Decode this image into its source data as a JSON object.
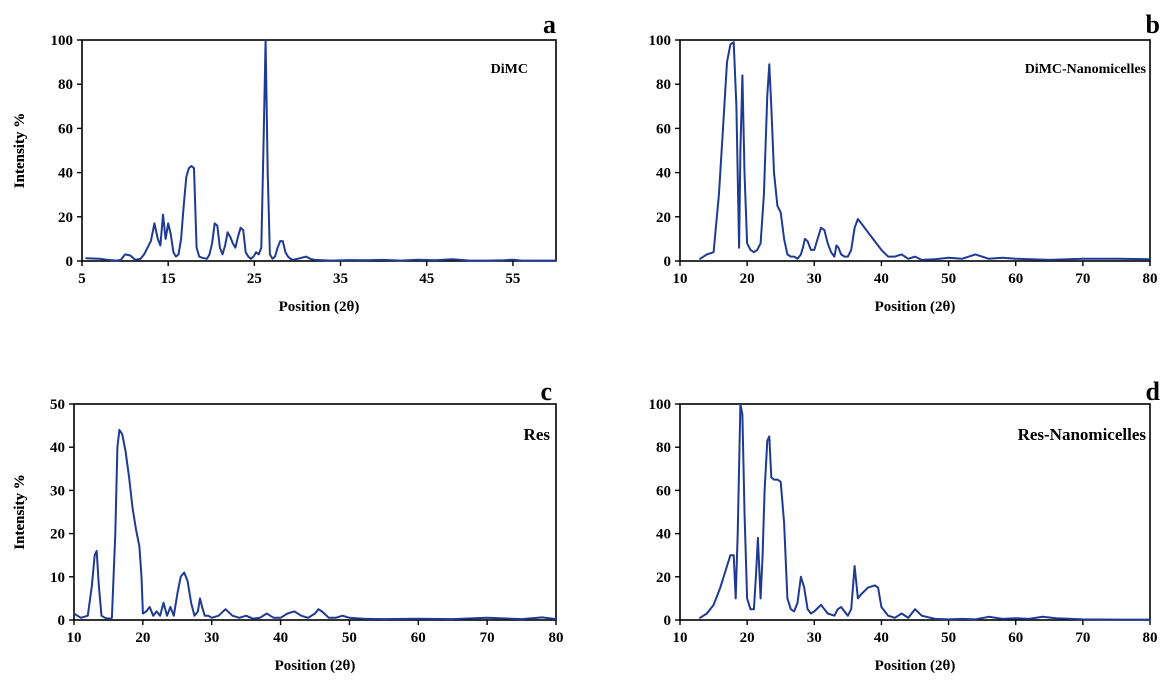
{
  "colors": {
    "line": "#1f3a93",
    "axis": "#000000",
    "background": "#ffffff"
  },
  "chart_data": [
    {
      "type": "line",
      "panel_letter": "a",
      "series": [
        {
          "name": "DiMC",
          "x": [
            5.5,
            7,
            8,
            9,
            9.5,
            10,
            10.6,
            11.2,
            11.8,
            12.2,
            12.6,
            13,
            13.4,
            13.8,
            14.1,
            14.4,
            14.7,
            15,
            15.3,
            15.6,
            15.9,
            16.2,
            16.5,
            16.8,
            17.1,
            17.4,
            17.7,
            18,
            18.3,
            18.6,
            18.9,
            19.2,
            19.5,
            19.8,
            20.1,
            20.4,
            20.7,
            21,
            21.3,
            21.6,
            21.9,
            22.2,
            22.5,
            22.8,
            23.1,
            23.4,
            23.7,
            24,
            24.3,
            24.6,
            24.9,
            25.2,
            25.5,
            25.8,
            26.05,
            26.3,
            26.55,
            26.8,
            27.1,
            27.4,
            27.7,
            28,
            28.3,
            28.6,
            28.9,
            29.2,
            29.5,
            30,
            30.5,
            31,
            31.5,
            32,
            33,
            34,
            36,
            38,
            40,
            42,
            44,
            46,
            48,
            50,
            52,
            54,
            55,
            56,
            58,
            60
          ],
          "y": [
            1.2,
            1,
            0.5,
            0.2,
            0.5,
            3,
            2.5,
            0.5,
            1,
            3,
            6,
            9,
            17,
            10,
            7,
            21,
            10,
            17,
            12,
            4,
            2,
            3,
            10,
            25,
            38,
            42,
            43,
            42,
            6,
            2,
            1.5,
            1.2,
            1,
            3,
            8,
            17,
            16,
            6,
            3,
            7,
            13,
            11,
            8,
            6,
            11,
            15,
            14,
            4,
            2,
            1,
            2,
            4,
            3,
            6,
            50,
            100,
            40,
            3,
            1,
            2,
            6,
            9,
            9,
            4,
            2,
            1,
            0.5,
            1,
            1.5,
            2,
            1,
            0.5,
            0.3,
            0.2,
            0.4,
            0.3,
            0.5,
            0.2,
            0.6,
            0.3,
            0.8,
            0.2,
            0.2,
            0.3,
            0.6,
            0.2,
            0.2,
            0.2
          ]
        }
      ],
      "xlabel": "Position  (2θ)",
      "ylabel": "Intensity %",
      "xlim": [
        5,
        60
      ],
      "ylim": [
        0,
        100
      ],
      "xticks": [
        5,
        15,
        25,
        35,
        45,
        55
      ],
      "yticks": [
        0,
        20,
        40,
        60,
        80,
        100
      ],
      "legend": "top-right"
    },
    {
      "type": "line",
      "panel_letter": "b",
      "series": [
        {
          "name": "DiMC-Nanomicelles",
          "x": [
            13,
            14,
            15,
            15.8,
            16.4,
            17,
            17.5,
            18,
            18.4,
            18.8,
            19,
            19.3,
            19.6,
            20,
            20.5,
            21,
            21.5,
            22,
            22.5,
            23,
            23.3,
            23.6,
            24,
            24.5,
            25,
            25.5,
            26,
            26.5,
            27,
            27.5,
            28,
            28.3,
            28.6,
            29,
            29.5,
            30,
            30.5,
            31,
            31.5,
            32,
            32.5,
            33,
            33.3,
            33.6,
            34,
            34.5,
            35,
            35.5,
            36,
            36.5,
            37,
            38,
            39,
            40,
            41,
            42,
            43,
            44,
            45,
            46,
            48,
            50,
            52,
            54,
            56,
            58,
            60,
            65,
            70,
            75,
            80
          ],
          "y": [
            1,
            3,
            4,
            30,
            60,
            90,
            98,
            99,
            70,
            6,
            50,
            84,
            40,
            8,
            5,
            4,
            5,
            8,
            30,
            75,
            89,
            70,
            40,
            25,
            22,
            10,
            3,
            2,
            2,
            1,
            3,
            6,
            10,
            9,
            5,
            5,
            10,
            15,
            14,
            8,
            4,
            2,
            7,
            6,
            3,
            2,
            2,
            5,
            15,
            19,
            17,
            13,
            9,
            5,
            2,
            2,
            3,
            1,
            2,
            0.5,
            0.8,
            1.5,
            1,
            3,
            1,
            1.5,
            1,
            0.5,
            1,
            1,
            0.8
          ]
        }
      ],
      "xlabel": "Position  (2θ)",
      "ylabel": "Intensity %",
      "xlim": [
        10,
        80
      ],
      "ylim": [
        0,
        100
      ],
      "xticks": [
        10,
        20,
        30,
        40,
        50,
        60,
        70,
        80
      ],
      "yticks": [
        0,
        20,
        40,
        60,
        80,
        100
      ],
      "legend": "top-right"
    },
    {
      "type": "line",
      "panel_letter": "c",
      "series": [
        {
          "name": "Res",
          "x": [
            10,
            10.5,
            11,
            12,
            12.6,
            13,
            13.3,
            13.6,
            14,
            14.5,
            15,
            15.5,
            16,
            16.3,
            16.6,
            17,
            17.5,
            18,
            18.5,
            19,
            19.5,
            19.8,
            20,
            20.5,
            21,
            21.5,
            22,
            22.5,
            23,
            23.5,
            24,
            24.5,
            25,
            25.5,
            26,
            26.5,
            27,
            27.5,
            28,
            28.3,
            28.6,
            29,
            29.5,
            30,
            31,
            32,
            33,
            34,
            35,
            36,
            37,
            38,
            38.5,
            39,
            40,
            41,
            42,
            43,
            44,
            45,
            45.5,
            46,
            47,
            48,
            49,
            50,
            52,
            55,
            60,
            65,
            70,
            75,
            78,
            80
          ],
          "y": [
            1.5,
            1,
            0.5,
            1,
            8,
            15,
            16,
            8,
            1,
            0.5,
            0.3,
            0.5,
            20,
            40,
            44,
            43,
            39,
            33,
            26,
            21,
            17,
            10,
            1.5,
            2,
            3,
            1,
            2,
            1,
            4,
            1,
            3,
            1,
            6,
            10,
            11,
            9,
            4,
            1,
            2,
            5,
            3,
            1,
            1,
            0.5,
            1,
            2.5,
            1,
            0.5,
            1,
            0.3,
            0.5,
            1.5,
            1,
            0.5,
            0.5,
            1.5,
            2,
            1,
            0.5,
            1.5,
            2.5,
            2,
            0.5,
            0.5,
            1,
            0.5,
            0.3,
            0.2,
            0.3,
            0.2,
            0.5,
            0.2,
            0.6,
            0.2
          ]
        }
      ],
      "xlabel": "Position  (2θ)",
      "ylabel": "Intensity %",
      "xlim": [
        10,
        80
      ],
      "ylim": [
        0,
        50
      ],
      "xticks": [
        10,
        20,
        30,
        40,
        50,
        60,
        70,
        80
      ],
      "yticks": [
        0,
        10,
        20,
        30,
        40,
        50
      ],
      "legend": "top-right"
    },
    {
      "type": "line",
      "panel_letter": "d",
      "series": [
        {
          "name": "Res-Nanomicelles",
          "x": [
            13,
            14,
            15,
            16,
            17,
            17.5,
            18,
            18.3,
            18.6,
            19,
            19.3,
            19.6,
            20,
            20.5,
            21,
            21.3,
            21.6,
            22,
            22.3,
            22.6,
            23,
            23.3,
            23.6,
            24,
            24.5,
            25,
            25.5,
            26,
            26.5,
            27,
            27.5,
            28,
            28.5,
            29,
            29.5,
            30,
            31,
            32,
            33,
            33.5,
            34,
            34.5,
            35,
            35.5,
            36,
            36.5,
            37,
            38,
            39,
            39.5,
            40,
            41,
            42,
            43,
            44,
            45,
            46,
            48,
            50,
            52,
            54,
            56,
            58,
            60,
            62,
            64,
            66,
            70,
            75,
            80
          ],
          "y": [
            1,
            3,
            7,
            15,
            25,
            30,
            30,
            10,
            40,
            100,
            95,
            50,
            10,
            5,
            5,
            20,
            38,
            10,
            30,
            60,
            83,
            85,
            66,
            65,
            65,
            64,
            45,
            10,
            5,
            4,
            8,
            20,
            15,
            5,
            3,
            4,
            7,
            3,
            2,
            5,
            6,
            4,
            2,
            5,
            25,
            10,
            12,
            15,
            16,
            15,
            6,
            2,
            1,
            3,
            1,
            5,
            2,
            0.5,
            0.3,
            0.5,
            0.3,
            1.5,
            0.5,
            0.8,
            0.5,
            1.5,
            0.8,
            0.3,
            0.2,
            0.2
          ]
        }
      ],
      "xlabel": "Position  (2θ)",
      "ylabel": "Intensity %",
      "xlim": [
        10,
        80
      ],
      "ylim": [
        0,
        100
      ],
      "xticks": [
        10,
        20,
        30,
        40,
        50,
        60,
        70,
        80
      ],
      "yticks": [
        0,
        20,
        40,
        60,
        80,
        100
      ],
      "legend": "top-right"
    }
  ]
}
